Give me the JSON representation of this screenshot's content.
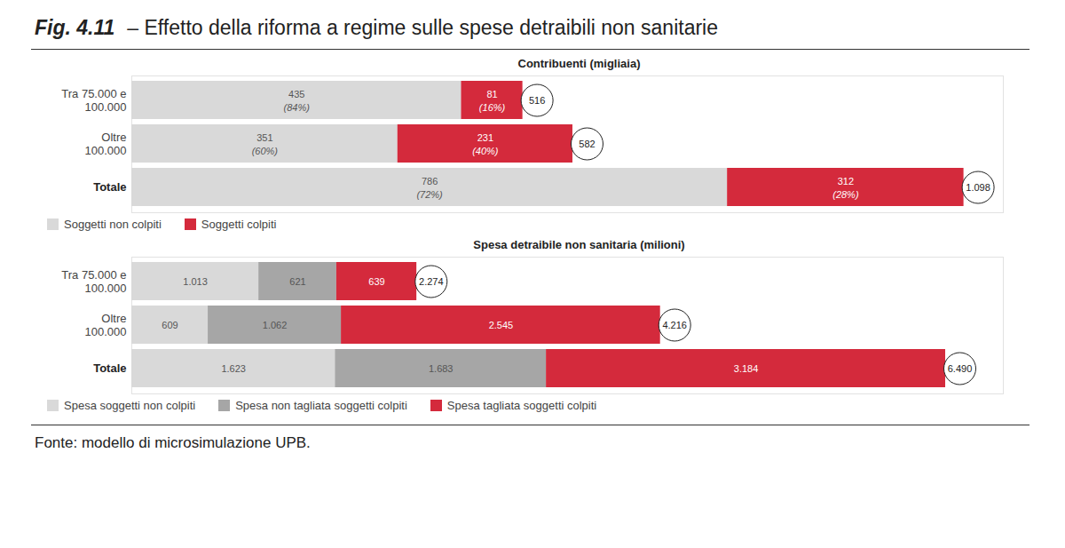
{
  "figure_label": "Fig. 4.11",
  "title": "– Effetto della riforma a regime sulle spese detraibili non sanitarie",
  "source": "Fonte: modello di microsimulazione UPB.",
  "chart_data": [
    {
      "type": "bar",
      "title": "Contribuenti (migliaia)",
      "orientation": "horizontal",
      "stacked": true,
      "data_labels": true,
      "tick_labels": "y",
      "legend": "bottom-left",
      "categories": [
        "Tra 75.000 e\n100.000",
        "Oltre\n100.000",
        "Totale"
      ],
      "xlim": [
        0,
        1150
      ],
      "xticks": [],
      "series": [
        {
          "name": "Soggetti non colpiti",
          "color": "#d9d9d9",
          "values": [
            435,
            351,
            786
          ],
          "share_labels": [
            "(84%)",
            "(60%)",
            "(72%)"
          ]
        },
        {
          "name": "Soggetti colpiti",
          "color": "#d42a3c",
          "values": [
            81,
            231,
            312
          ],
          "share_labels": [
            "(16%)",
            "(40%)",
            "(28%)"
          ]
        }
      ],
      "totals": [
        516,
        582,
        1098
      ],
      "total_labels": [
        "516",
        "582",
        "1.098"
      ]
    },
    {
      "type": "bar",
      "title": "Spesa detraibile non sanitaria (milioni)",
      "orientation": "horizontal",
      "stacked": true,
      "data_labels": true,
      "tick_labels": "y",
      "legend": "bottom-left",
      "categories": [
        "Tra 75.000 e\n100.000",
        "Oltre\n100.000",
        "Totale"
      ],
      "xlim": [
        0,
        6950
      ],
      "xticks": [],
      "series": [
        {
          "name": "Spesa soggetti non colpiti",
          "color": "#d9d9d9",
          "values": [
            1013,
            609,
            1623
          ],
          "value_labels": [
            "1.013",
            "609",
            "1.623"
          ]
        },
        {
          "name": "Spesa non tagliata soggetti colpiti",
          "color": "#a6a6a6",
          "values": [
            621,
            1062,
            1683
          ],
          "value_labels": [
            "621",
            "1.062",
            "1.683"
          ]
        },
        {
          "name": "Spesa tagliata soggetti colpiti",
          "color": "#d42a3c",
          "values": [
            639,
            2545,
            3184
          ],
          "value_labels": [
            "639",
            "2.545",
            "3.184"
          ]
        }
      ],
      "totals": [
        2274,
        4216,
        6490
      ],
      "total_labels": [
        "2.274",
        "4.216",
        "6.490"
      ]
    }
  ]
}
